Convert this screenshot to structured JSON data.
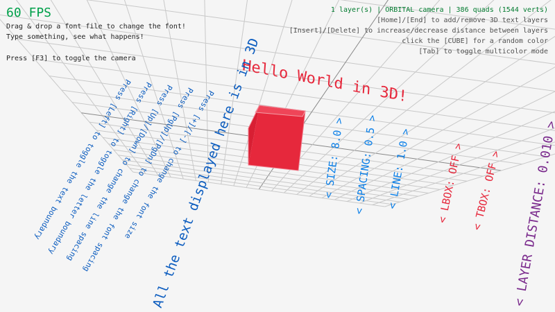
{
  "hud": {
    "fps": "60 FPS",
    "help_lines": [
      "Drag & drop a font file to change the font!",
      "Type something, see what happens!",
      "Press [F3] to toggle the camera"
    ],
    "status": "1 layer(s) | ORBITAL camera |  386 quads (1544 verts)",
    "right_lines": [
      "[Home]/[End] to add/remove 3D text layers",
      "[Insert]/[Delete] to increase/decrease distance between layers",
      "click the [CUBE] for a random color",
      "[Tab] to toggle multicolor mode"
    ]
  },
  "scene": {
    "title_text": "Hello World in 3D!",
    "instructions": [
      "Press [Left] to toggle the text boundary",
      "Press [Right] to toggle the letter boundary",
      "Press [Up]/[Down] to change the line spacing",
      "Press [PgUp]/[PgDn] to change the font spacing",
      "Press [+]/[-] to change the font size"
    ],
    "main_text": "All the text displayed here is in 3D",
    "settings": [
      "< SIZE: 8.0 >",
      "< SPACING: 0.5 >",
      "< LINE: 1.0 >",
      "< LBOX: OFF >",
      "< TBOX: OFF >",
      "< LAYER DISTANCE: 0.010 >"
    ],
    "cube_color": "#e6283c"
  },
  "colors": {
    "fps": "#00a04a",
    "status": "#007a2e",
    "text_blue": "#0b5cbf",
    "settings_blue": "#0a7fe8",
    "red": "#e6283c",
    "purple": "#7a2a8c"
  }
}
